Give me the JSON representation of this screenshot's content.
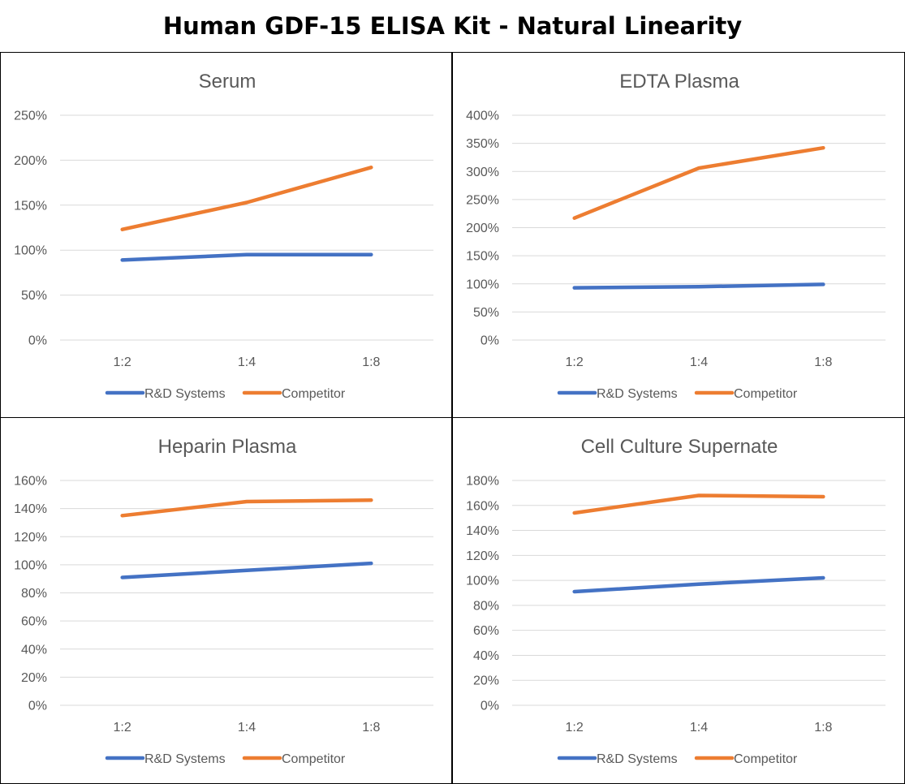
{
  "title": "Human GDF-15 ELISA Kit - Natural Linearity",
  "legend": [
    "R&D Systems",
    "Competitor"
  ],
  "colors": {
    "R&D Systems": "#4472C4",
    "Competitor": "#ED7D31",
    "grid": "#D9D9D9",
    "text": "#595959"
  },
  "chart_data": [
    {
      "type": "line",
      "title": "Serum",
      "categories": [
        "1:2",
        "1:4",
        "1:8"
      ],
      "yticks": [
        "0%",
        "50%",
        "100%",
        "150%",
        "200%",
        "250%"
      ],
      "ylim": [
        0,
        250
      ],
      "series": [
        {
          "name": "R&D Systems",
          "values": [
            89,
            95,
            95
          ]
        },
        {
          "name": "Competitor",
          "values": [
            123,
            153,
            192
          ]
        }
      ]
    },
    {
      "type": "line",
      "title": "EDTA Plasma",
      "categories": [
        "1:2",
        "1:4",
        "1:8"
      ],
      "yticks": [
        "0%",
        "50%",
        "100%",
        "150%",
        "200%",
        "250%",
        "300%",
        "350%",
        "400%"
      ],
      "ylim": [
        0,
        400
      ],
      "series": [
        {
          "name": "R&D Systems",
          "values": [
            93,
            95,
            99
          ]
        },
        {
          "name": "Competitor",
          "values": [
            217,
            306,
            342
          ]
        }
      ]
    },
    {
      "type": "line",
      "title": "Heparin Plasma",
      "categories": [
        "1:2",
        "1:4",
        "1:8"
      ],
      "yticks": [
        "0%",
        "20%",
        "40%",
        "60%",
        "80%",
        "100%",
        "120%",
        "140%",
        "160%"
      ],
      "ylim": [
        0,
        160
      ],
      "series": [
        {
          "name": "R&D Systems",
          "values": [
            91,
            96,
            101
          ]
        },
        {
          "name": "Competitor",
          "values": [
            135,
            145,
            146
          ]
        }
      ]
    },
    {
      "type": "line",
      "title": "Cell Culture Supernate",
      "categories": [
        "1:2",
        "1:4",
        "1:8"
      ],
      "yticks": [
        "0%",
        "20%",
        "40%",
        "60%",
        "80%",
        "100%",
        "120%",
        "140%",
        "160%",
        "180%"
      ],
      "ylim": [
        0,
        180
      ],
      "series": [
        {
          "name": "R&D Systems",
          "values": [
            91,
            97,
            102
          ]
        },
        {
          "name": "Competitor",
          "values": [
            154,
            168,
            167
          ]
        }
      ]
    }
  ]
}
